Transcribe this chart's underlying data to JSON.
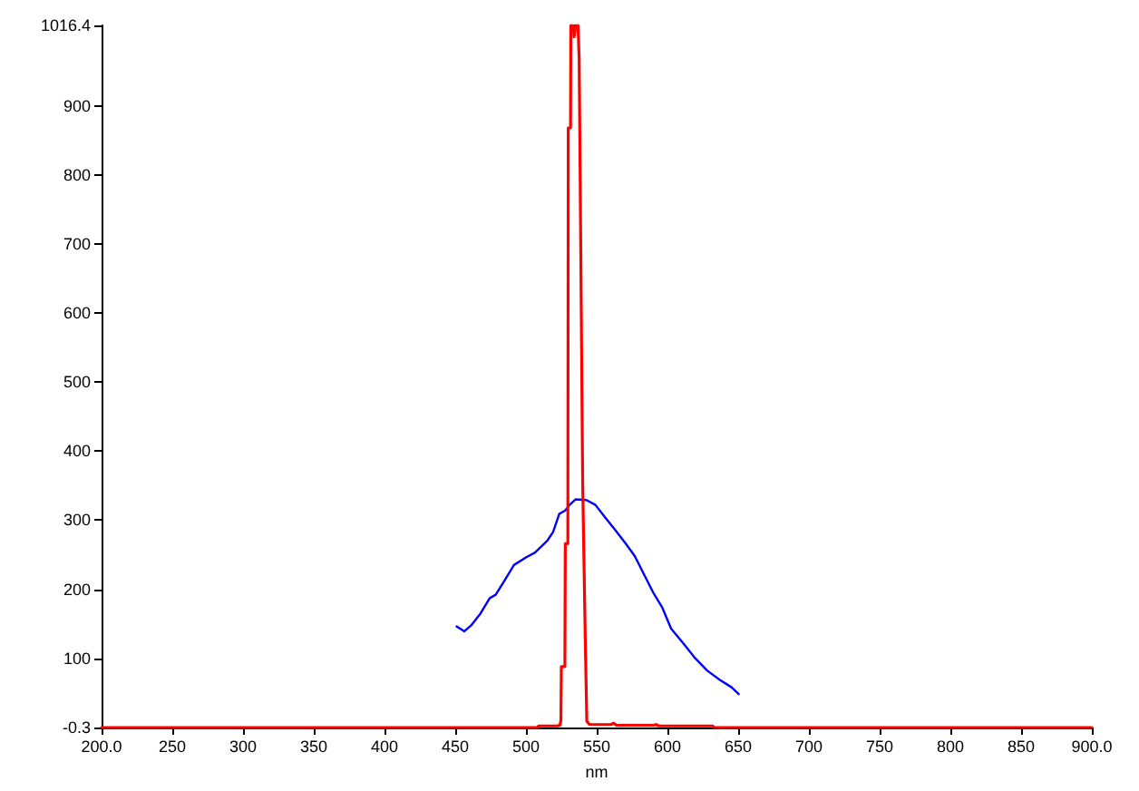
{
  "chart_data": {
    "type": "line",
    "xlabel": "nm",
    "xlim": [
      200,
      900
    ],
    "xticks": [
      {
        "value": 200,
        "label": "200.0"
      },
      250,
      300,
      350,
      400,
      450,
      500,
      550,
      600,
      650,
      700,
      750,
      800,
      850,
      {
        "value": 900,
        "label": "900.0"
      }
    ],
    "ylim": [
      -0.3,
      1016.4
    ],
    "yticks": [
      -0.3,
      100,
      200,
      300,
      400,
      500,
      600,
      700,
      800,
      900,
      1016.4
    ],
    "series": [
      {
        "color": "#ff0000",
        "x": [
          200,
          508,
          509,
          522,
          524,
          524.7,
          525,
          527.5,
          527.8,
          529.6,
          529.9,
          531.5,
          531.7,
          533.5,
          534,
          534.8,
          535.2,
          536.8,
          537.6,
          538.8,
          540.1,
          541.9,
          543,
          545,
          560,
          562,
          564,
          590,
          592,
          594,
          632,
          633,
          900
        ],
        "values": [
          -0.3,
          -0.3,
          2,
          2,
          3,
          10,
          88,
          88,
          266,
          266,
          868,
          868,
          1016.4,
          1016.4,
          1000,
          1000,
          1016.4,
          1016.4,
          968,
          676,
          353,
          130,
          9,
          4,
          4,
          6,
          3,
          3,
          4,
          2,
          2,
          -0.3,
          -0.3
        ]
      },
      {
        "color": "#0000ff",
        "x": [
          451,
          456.4,
          461.5,
          467.9,
          474.4,
          478.6,
          485,
          491.5,
          500,
          506.4,
          515,
          519.2,
          523.5,
          527.8,
          530.8,
          535,
          542.7,
          549.1,
          555.5,
          564.1,
          570.5,
          576.9,
          583.3,
          589.7,
          596.2,
          602.6,
          611.1,
          619.6,
          628.2,
          636.8,
          645.3,
          650.4
        ],
        "values": [
          146,
          139,
          148,
          165,
          187,
          192,
          213,
          235,
          246,
          253,
          270,
          283,
          309,
          314,
          322,
          330,
          329,
          322,
          305,
          283,
          266,
          248,
          222,
          196,
          174,
          143,
          122,
          100,
          82,
          69,
          58,
          48
        ]
      }
    ]
  }
}
